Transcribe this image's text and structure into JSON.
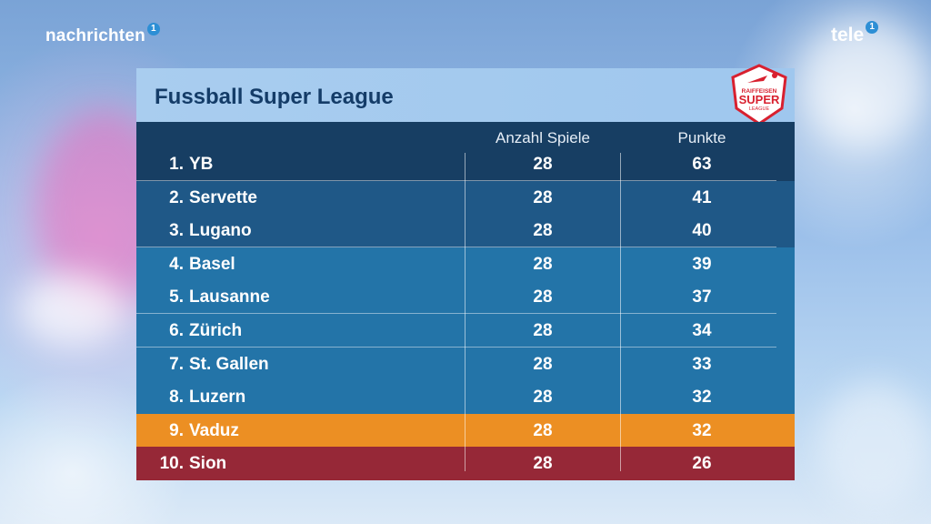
{
  "branding": {
    "left_text": "nachrichten",
    "left_badge": "1",
    "right_text": "tele",
    "right_badge": "1"
  },
  "table": {
    "title": "Fussball Super League",
    "logo": {
      "line1": "RAIFFEISEN",
      "line2": "SUPER",
      "line3": "LEAGUE"
    },
    "headers": {
      "games": "Anzahl Spiele",
      "points": "Punkte"
    },
    "rows": [
      {
        "rank": "1.",
        "team": "YB",
        "games": "28",
        "points": "63",
        "color": "#173e63"
      },
      {
        "rank": "2.",
        "team": "Servette",
        "games": "28",
        "points": "41",
        "color": "#1f5887"
      },
      {
        "rank": "3.",
        "team": "Lugano",
        "games": "28",
        "points": "40",
        "color": "#1f5887"
      },
      {
        "rank": "4.",
        "team": "Basel",
        "games": "28",
        "points": "39",
        "color": "#2374a8"
      },
      {
        "rank": "5.",
        "team": "Lausanne",
        "games": "28",
        "points": "37",
        "color": "#2374a8"
      },
      {
        "rank": "6.",
        "team": "Zürich",
        "games": "28",
        "points": "34",
        "color": "#2374a8"
      },
      {
        "rank": "7.",
        "team": "St. Gallen",
        "games": "28",
        "points": "33",
        "color": "#2374a8"
      },
      {
        "rank": "8.",
        "team": "Luzern",
        "games": "28",
        "points": "32",
        "color": "#2374a8"
      },
      {
        "rank": "9.",
        "team": "Vaduz",
        "games": "28",
        "points": "32",
        "color": "#ec8f23"
      },
      {
        "rank": "10.",
        "team": "Sion",
        "games": "28",
        "points": "26",
        "color": "#962837"
      }
    ]
  },
  "colors": {
    "title_bar": "#a9cdef",
    "title_text": "#143c68",
    "header": "#173e63",
    "logo_red": "#d8202f"
  }
}
